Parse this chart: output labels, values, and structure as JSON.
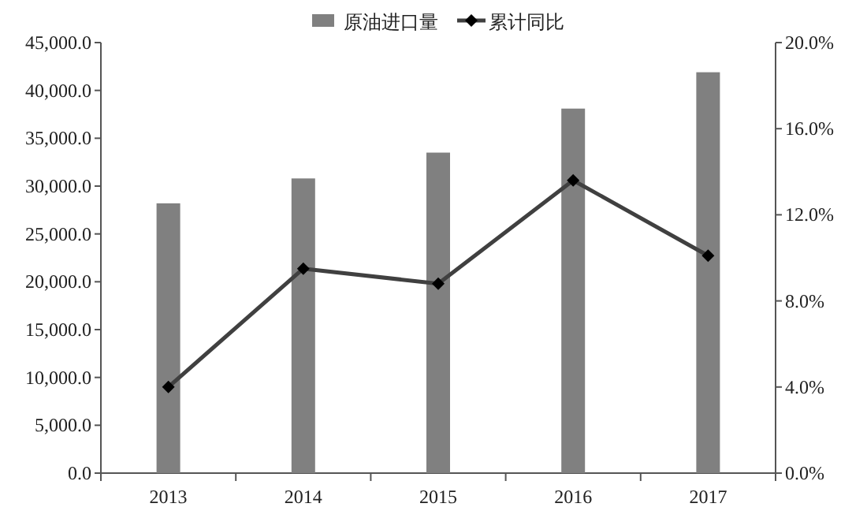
{
  "chart_data": {
    "type": "bar",
    "categories": [
      "2013",
      "2014",
      "2015",
      "2016",
      "2017"
    ],
    "series": [
      {
        "name": "原油进口量",
        "color": "#808080",
        "values": [
          28200,
          30800,
          33500,
          38100,
          41900
        ]
      },
      {
        "name": "累计同比",
        "type": "line",
        "axis": "y2",
        "color": "#404040",
        "values": [
          4.0,
          9.5,
          8.8,
          13.6,
          10.1
        ]
      }
    ],
    "ylim": [
      0,
      45000
    ],
    "yticks": [
      {
        "value": 0,
        "label": "0.0"
      },
      {
        "value": 5000,
        "label": "5,000.0"
      },
      {
        "value": 10000,
        "label": "10,000.0"
      },
      {
        "value": 15000,
        "label": "15,000.0"
      },
      {
        "value": 20000,
        "label": "20,000.0"
      },
      {
        "value": 25000,
        "label": "25,000.0"
      },
      {
        "value": 30000,
        "label": "30,000.0"
      },
      {
        "value": 35000,
        "label": "35,000.0"
      },
      {
        "value": 40000,
        "label": "40,000.0"
      },
      {
        "value": 45000,
        "label": "45,000.0"
      }
    ],
    "y2lim": [
      0,
      20
    ],
    "y2ticks": [
      {
        "value": 0,
        "label": "0.0%"
      },
      {
        "value": 4,
        "label": "4.0%"
      },
      {
        "value": 8,
        "label": "8.0%"
      },
      {
        "value": 12,
        "label": "12.0%"
      },
      {
        "value": 16,
        "label": "16.0%"
      },
      {
        "value": 20,
        "label": "20.0%"
      }
    ],
    "legend": "top",
    "marker": "diamond",
    "grid": false
  }
}
